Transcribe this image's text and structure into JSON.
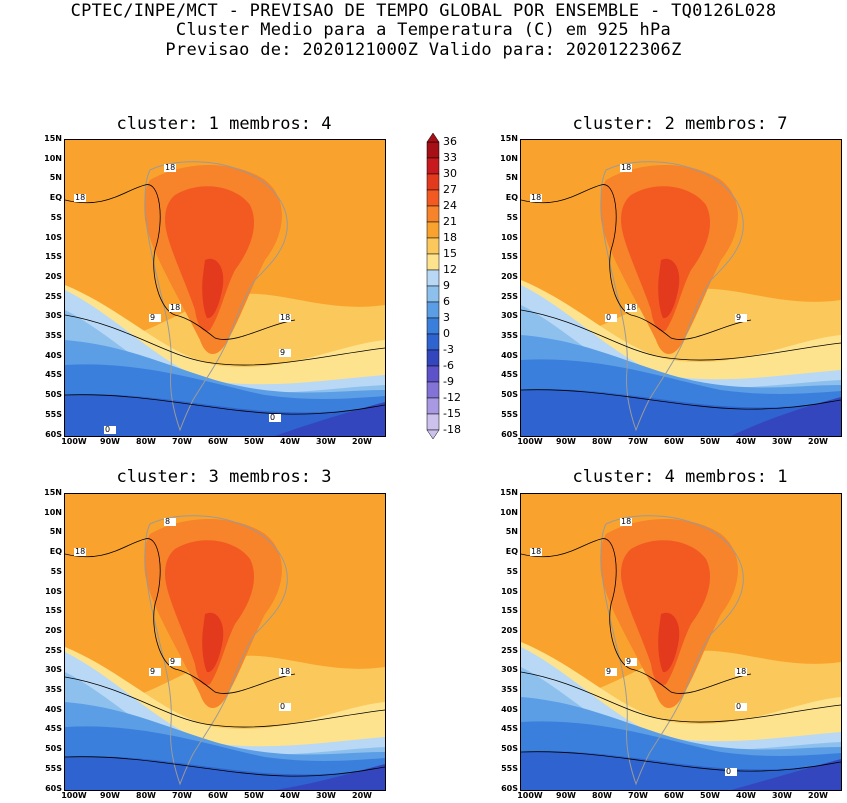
{
  "header": {
    "line1": "CPTEC/INPE/MCT - PREVISAO DE TEMPO GLOBAL POR ENSEMBLE - TQ0126L028",
    "line2": "Cluster Medio para a Temperatura (C) em 925 hPa",
    "line3": "Previsao de: 2020121000Z   Valido para: 2020122306Z"
  },
  "panels": [
    {
      "title": "cluster: 1   membros: 4"
    },
    {
      "title": "cluster: 2   membros: 7"
    },
    {
      "title": "cluster: 3   membros: 3"
    },
    {
      "title": "cluster: 4   membros: 1"
    }
  ],
  "axes": {
    "lat_labels": [
      "15N",
      "10N",
      "5N",
      "EQ",
      "5S",
      "10S",
      "15S",
      "20S",
      "25S",
      "30S",
      "35S",
      "40S",
      "45S",
      "50S",
      "55S",
      "60S"
    ],
    "lon_labels": [
      "100W",
      "90W",
      "80W",
      "70W",
      "60W",
      "50W",
      "40W",
      "30W",
      "20W"
    ]
  },
  "colorbar": {
    "labels": [
      "36",
      "33",
      "30",
      "27",
      "24",
      "21",
      "18",
      "15",
      "12",
      "9",
      "6",
      "3",
      "0",
      "-3",
      "-6",
      "-9",
      "-12",
      "-15",
      "-18"
    ],
    "colors": [
      "#a50f15",
      "#c8191f",
      "#e33a1e",
      "#f25a22",
      "#f7832a",
      "#f9a32e",
      "#fbc85c",
      "#fde38e",
      "#b8d8f5",
      "#8ec0ee",
      "#5b9ee6",
      "#3b7fdc",
      "#2f63cf",
      "#3446be",
      "#5d52c9",
      "#8473d6",
      "#a999e2",
      "#cdc2ee"
    ]
  },
  "contour_labels": {
    "p1": [
      "18",
      "18",
      "18",
      "18",
      "9",
      "9",
      "0",
      "0"
    ],
    "p2": [
      "18",
      "18",
      "18",
      "9",
      "0"
    ],
    "p3": [
      "8",
      "18",
      "9",
      "18",
      "9",
      "0"
    ],
    "p4": [
      "18",
      "18",
      "9",
      "18",
      "9",
      "0",
      "0"
    ]
  }
}
